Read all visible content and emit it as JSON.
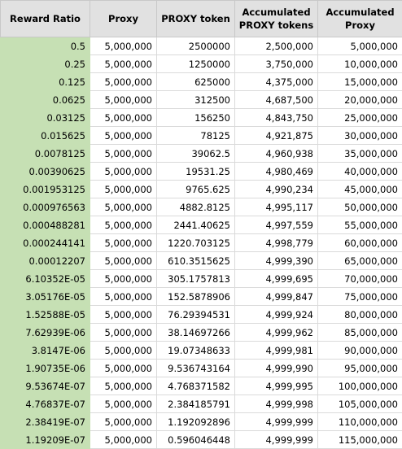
{
  "headers": [
    "Reward Ratio",
    "Proxy",
    "PROXY token",
    "Accumulated PROXY tokens",
    "Accumulated Proxy"
  ],
  "rows": [
    [
      "0.5",
      "5,000,000",
      "2500000",
      "2,500,000",
      "5,000,000"
    ],
    [
      "0.25",
      "5,000,000",
      "1250000",
      "3,750,000",
      "10,000,000"
    ],
    [
      "0.125",
      "5,000,000",
      "625000",
      "4,375,000",
      "15,000,000"
    ],
    [
      "0.0625",
      "5,000,000",
      "312500",
      "4,687,500",
      "20,000,000"
    ],
    [
      "0.03125",
      "5,000,000",
      "156250",
      "4,843,750",
      "25,000,000"
    ],
    [
      "0.015625",
      "5,000,000",
      "78125",
      "4,921,875",
      "30,000,000"
    ],
    [
      "0.0078125",
      "5,000,000",
      "39062.5",
      "4,960,938",
      "35,000,000"
    ],
    [
      "0.00390625",
      "5,000,000",
      "19531.25",
      "4,980,469",
      "40,000,000"
    ],
    [
      "0.001953125",
      "5,000,000",
      "9765.625",
      "4,990,234",
      "45,000,000"
    ],
    [
      "0.000976563",
      "5,000,000",
      "4882.8125",
      "4,995,117",
      "50,000,000"
    ],
    [
      "0.000488281",
      "5,000,000",
      "2441.40625",
      "4,997,559",
      "55,000,000"
    ],
    [
      "0.000244141",
      "5,000,000",
      "1220.703125",
      "4,998,779",
      "60,000,000"
    ],
    [
      "0.00012207",
      "5,000,000",
      "610.3515625",
      "4,999,390",
      "65,000,000"
    ],
    [
      "6.10352E-05",
      "5,000,000",
      "305.1757813",
      "4,999,695",
      "70,000,000"
    ],
    [
      "3.05176E-05",
      "5,000,000",
      "152.5878906",
      "4,999,847",
      "75,000,000"
    ],
    [
      "1.52588E-05",
      "5,000,000",
      "76.29394531",
      "4,999,924",
      "80,000,000"
    ],
    [
      "7.62939E-06",
      "5,000,000",
      "38.14697266",
      "4,999,962",
      "85,000,000"
    ],
    [
      "3.8147E-06",
      "5,000,000",
      "19.07348633",
      "4,999,981",
      "90,000,000"
    ],
    [
      "1.90735E-06",
      "5,000,000",
      "9.536743164",
      "4,999,990",
      "95,000,000"
    ],
    [
      "9.53674E-07",
      "5,000,000",
      "4.768371582",
      "4,999,995",
      "100,000,000"
    ],
    [
      "4.76837E-07",
      "5,000,000",
      "2.384185791",
      "4,999,998",
      "105,000,000"
    ],
    [
      "2.38419E-07",
      "5,000,000",
      "1.192092896",
      "4,999,999",
      "110,000,000"
    ],
    [
      "1.19209E-07",
      "5,000,000",
      "0.596046448",
      "4,999,999",
      "115,000,000"
    ]
  ],
  "colors": {
    "header_bg": "#e1e1e1",
    "ratio_column_bg": "#c6e0b4",
    "grid_line": "#dadada"
  }
}
